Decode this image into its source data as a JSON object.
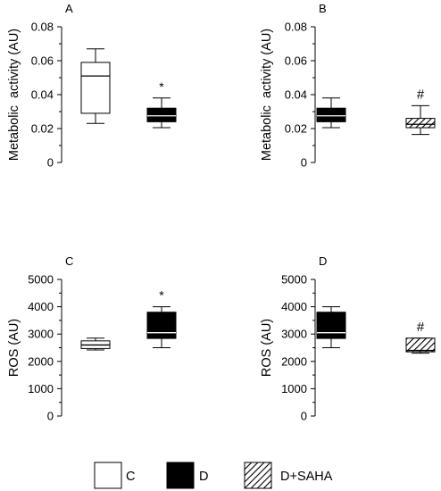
{
  "chart_data": [
    {
      "type": "box",
      "panel_label": "A",
      "ylabel": "Metabolic  activity (AU)",
      "ylim": [
        0,
        0.08
      ],
      "yticks": [
        "0",
        "0.02",
        "0.04",
        "0.06",
        "0.08"
      ],
      "ytick_values": [
        0,
        0.02,
        0.04,
        0.06,
        0.08
      ],
      "groups": [
        "C",
        "D"
      ],
      "boxes": [
        {
          "group": "C",
          "whisker_low": 0.023,
          "q1": 0.029,
          "median": 0.051,
          "q3": 0.059,
          "whisker_high": 0.067,
          "mark": ""
        },
        {
          "group": "D",
          "whisker_low": 0.0205,
          "q1": 0.024,
          "median": 0.0275,
          "q3": 0.032,
          "whisker_high": 0.038,
          "mark": "*"
        }
      ]
    },
    {
      "type": "box",
      "panel_label": "B",
      "ylabel": "Metabolic  activity (AU)",
      "ylim": [
        0,
        0.08
      ],
      "yticks": [
        "0",
        "0.02",
        "0.04",
        "0.06",
        "0.08"
      ],
      "ytick_values": [
        0,
        0.02,
        0.04,
        0.06,
        0.08
      ],
      "groups": [
        "D",
        "D+SAHA"
      ],
      "boxes": [
        {
          "group": "D",
          "whisker_low": 0.0205,
          "q1": 0.024,
          "median": 0.0275,
          "q3": 0.032,
          "whisker_high": 0.038,
          "mark": ""
        },
        {
          "group": "D+SAHA",
          "whisker_low": 0.0165,
          "q1": 0.0205,
          "median": 0.0225,
          "q3": 0.026,
          "whisker_high": 0.0335,
          "mark": "#"
        }
      ]
    },
    {
      "type": "box",
      "panel_label": "C",
      "ylabel": "ROS (AU)",
      "ylim": [
        0,
        5000
      ],
      "yticks": [
        "0",
        "1000",
        "2000",
        "3000",
        "4000",
        "5000"
      ],
      "ytick_values": [
        0,
        1000,
        2000,
        3000,
        4000,
        5000
      ],
      "groups": [
        "C",
        "D"
      ],
      "boxes": [
        {
          "group": "C",
          "whisker_low": 2420,
          "q1": 2470,
          "median": 2600,
          "q3": 2750,
          "whisker_high": 2850,
          "mark": ""
        },
        {
          "group": "D",
          "whisker_low": 2500,
          "q1": 2840,
          "median": 3050,
          "q3": 3800,
          "whisker_high": 4000,
          "mark": "*"
        }
      ]
    },
    {
      "type": "box",
      "panel_label": "D",
      "ylabel": "ROS (AU)",
      "ylim": [
        0,
        5000
      ],
      "yticks": [
        "0",
        "1000",
        "2000",
        "3000",
        "4000",
        "5000"
      ],
      "ytick_values": [
        0,
        1000,
        2000,
        3000,
        4000,
        5000
      ],
      "groups": [
        "D",
        "D+SAHA"
      ],
      "boxes": [
        {
          "group": "D",
          "whisker_low": 2500,
          "q1": 2840,
          "median": 3050,
          "q3": 3800,
          "whisker_high": 4000,
          "mark": ""
        },
        {
          "group": "D+SAHA",
          "whisker_low": 2300,
          "q1": 2350,
          "median": 2400,
          "q3": 2850,
          "whisker_high": 2850,
          "mark": "#"
        }
      ]
    }
  ],
  "legend": {
    "items": [
      {
        "label": "C",
        "fill": "white"
      },
      {
        "label": "D",
        "fill": "black"
      },
      {
        "label": "D+SAHA",
        "fill": "hatched"
      }
    ]
  },
  "colors": {
    "box_white": "#ffffff",
    "box_black": "#000000",
    "axis": "#000000",
    "median_on_black": "#ffffff"
  }
}
